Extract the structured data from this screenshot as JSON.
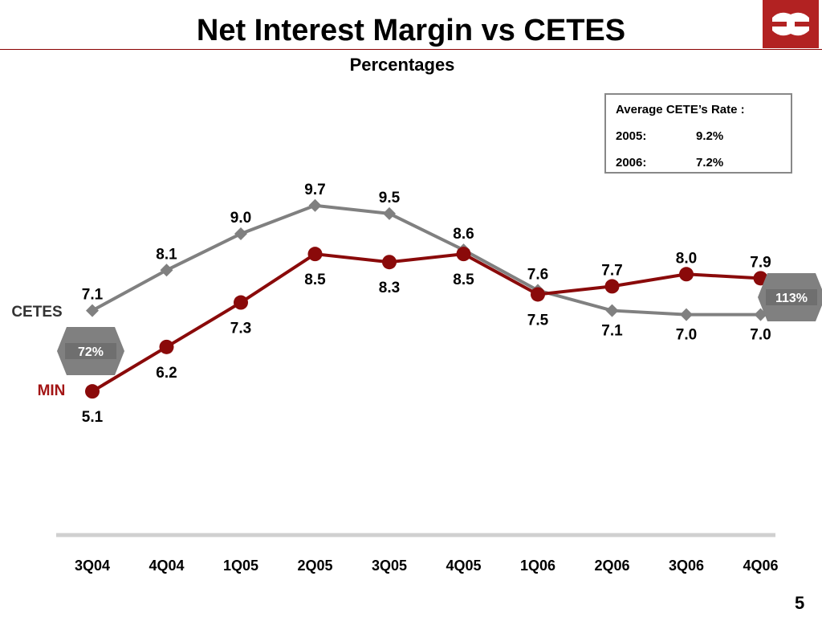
{
  "title": "Net Interest Margin vs CETES",
  "subtitle": "Percentages",
  "page_number": "5",
  "info_box": {
    "heading": "Average CETE’s Rate :",
    "rows": [
      {
        "year": "2005:",
        "rate": "9.2%"
      },
      {
        "year": "2006:",
        "rate": "7.2%"
      }
    ]
  },
  "badges": {
    "left": "72%",
    "right": "113%"
  },
  "colors": {
    "cetes": "#808080",
    "min": "#8a0a0a",
    "axis": "#d0d0d0",
    "badge": "#808080",
    "accent": "#a31515"
  },
  "chart_data": {
    "type": "line",
    "categories": [
      "3Q04",
      "4Q04",
      "1Q05",
      "2Q05",
      "3Q05",
      "4Q05",
      "1Q06",
      "2Q06",
      "3Q06",
      "4Q06"
    ],
    "series": [
      {
        "name": "CETES",
        "values": [
          7.1,
          8.1,
          9.0,
          9.7,
          9.5,
          8.6,
          7.6,
          7.1,
          7.0,
          7.0
        ],
        "value_labels": [
          "7.1",
          "8.1",
          "9.0",
          "9.7",
          "9.5",
          "8.6",
          "7.6",
          "7.1",
          "7.0",
          "7.0"
        ],
        "marker": "diamond"
      },
      {
        "name": "MIN",
        "values": [
          5.1,
          6.2,
          7.3,
          8.5,
          8.3,
          8.5,
          7.5,
          7.7,
          8.0,
          7.9
        ],
        "value_labels": [
          "5.1",
          "6.2",
          "7.3",
          "8.5",
          "8.3",
          "8.5",
          "7.5",
          "7.7",
          "8.0",
          "7.9"
        ],
        "marker": "circle"
      }
    ],
    "ylim": [
      2.0,
      10.0
    ],
    "grid": false,
    "legend": "inline-left"
  }
}
